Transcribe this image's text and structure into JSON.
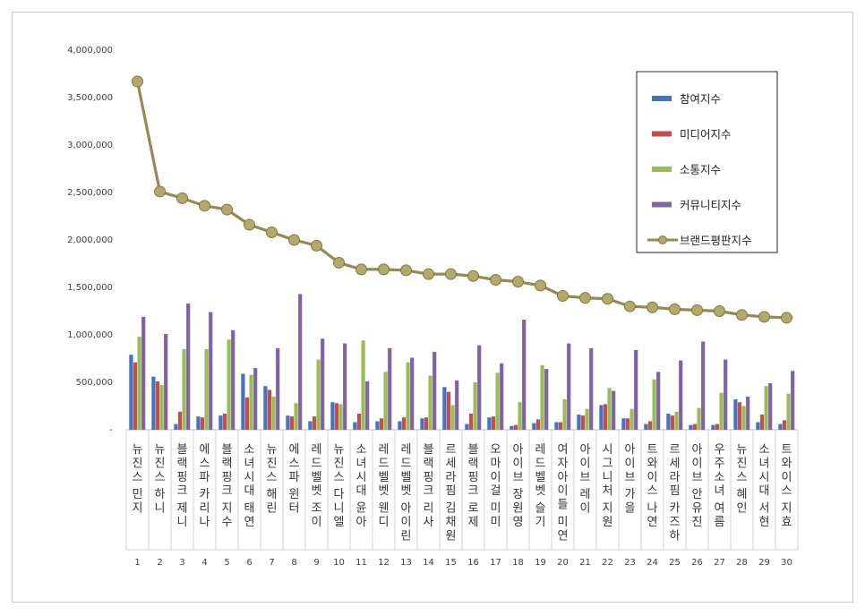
{
  "chart_data": {
    "type": "bar",
    "ylim": [
      0,
      4000000
    ],
    "y_tick_labels": [
      "-",
      "500,000",
      "1,000,000",
      "1,500,000",
      "2,000,000",
      "2,500,000",
      "3,000,000",
      "3,500,000",
      "4,000,000"
    ],
    "grid": false,
    "legend_position": "top-right",
    "categories": [
      "뉴진스 민지",
      "뉴진스 하니",
      "블랙핑크 제니",
      "에스파 카리나",
      "블랙핑크 지수",
      "소녀시대 태연",
      "뉴진스 해린",
      "에스파 윈터",
      "레드벨벳 조이",
      "뉴진스 다니엘",
      "소녀시대 윤아",
      "레드벨벳 웬디",
      "레드벨벳 아이린",
      "블랙핑크 리사",
      "르세라핌 김채원",
      "블랙핑크 로제",
      "오마이걸 미미",
      "아이브 장원영",
      "레드벨벳 슬기",
      "여자아이들 미연",
      "아이브 레이",
      "시그니처 지원",
      "아이브 가을",
      "트와이스 나연",
      "르세라핌 카즈하",
      "아이브 안유진",
      "우주소녀 여름",
      "뉴진스 혜인",
      "소녀시대 서현",
      "트와이스 지효"
    ],
    "ranks": [
      "1",
      "2",
      "3",
      "4",
      "5",
      "6",
      "7",
      "8",
      "9",
      "10",
      "11",
      "12",
      "13",
      "14",
      "15",
      "16",
      "17",
      "18",
      "19",
      "20",
      "21",
      "22",
      "23",
      "24",
      "25",
      "26",
      "27",
      "28",
      "29",
      "30"
    ],
    "series": [
      {
        "name": "참여지수",
        "kind": "bar",
        "color": "#4472c4",
        "values": [
          790000,
          560000,
          60000,
          140000,
          150000,
          590000,
          460000,
          150000,
          90000,
          290000,
          80000,
          90000,
          90000,
          120000,
          450000,
          60000,
          130000,
          40000,
          70000,
          80000,
          160000,
          260000,
          120000,
          60000,
          170000,
          50000,
          50000,
          320000,
          80000,
          60000
        ]
      },
      {
        "name": "미디어지수",
        "kind": "bar",
        "color": "#c0504d",
        "values": [
          710000,
          510000,
          190000,
          130000,
          170000,
          340000,
          420000,
          140000,
          140000,
          280000,
          170000,
          120000,
          130000,
          130000,
          400000,
          170000,
          140000,
          50000,
          110000,
          80000,
          150000,
          270000,
          120000,
          90000,
          150000,
          60000,
          60000,
          290000,
          160000,
          100000
        ]
      },
      {
        "name": "소통지수",
        "kind": "bar",
        "color": "#9bbb59",
        "values": [
          980000,
          470000,
          850000,
          850000,
          950000,
          580000,
          350000,
          280000,
          740000,
          270000,
          940000,
          610000,
          710000,
          570000,
          260000,
          500000,
          600000,
          290000,
          680000,
          320000,
          220000,
          440000,
          220000,
          530000,
          190000,
          230000,
          390000,
          250000,
          460000,
          380000
        ]
      },
      {
        "name": "커뮤니티지수",
        "kind": "bar",
        "color": "#8064a2",
        "values": [
          1190000,
          1010000,
          1330000,
          1240000,
          1050000,
          650000,
          860000,
          1430000,
          960000,
          910000,
          510000,
          860000,
          760000,
          820000,
          520000,
          890000,
          700000,
          1160000,
          640000,
          910000,
          860000,
          410000,
          840000,
          610000,
          730000,
          930000,
          740000,
          350000,
          490000,
          620000
        ]
      },
      {
        "name": "브랜드평판지수",
        "kind": "line",
        "color": "#948a54",
        "values": [
          3670000,
          2510000,
          2440000,
          2360000,
          2320000,
          2160000,
          2080000,
          2000000,
          1940000,
          1760000,
          1690000,
          1690000,
          1680000,
          1640000,
          1640000,
          1620000,
          1580000,
          1560000,
          1520000,
          1410000,
          1390000,
          1380000,
          1300000,
          1290000,
          1270000,
          1260000,
          1250000,
          1210000,
          1190000,
          1180000
        ]
      }
    ]
  }
}
